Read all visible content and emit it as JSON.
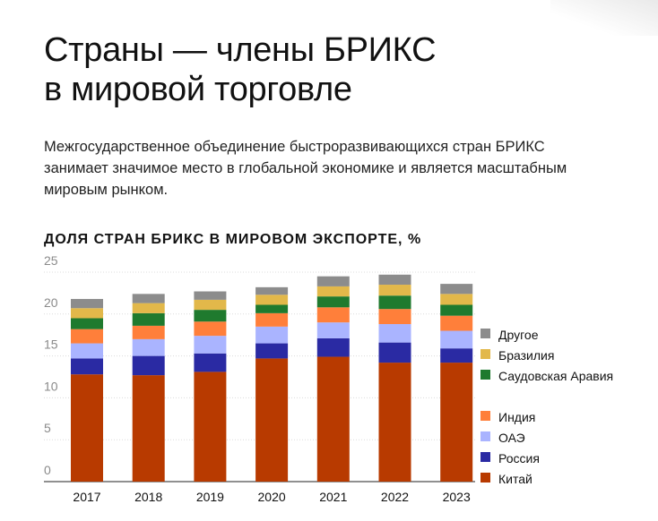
{
  "title_lines": [
    "Страны — члены БРИКС",
    "в мировой торговле"
  ],
  "subtitle_lines": [
    "Межгосударственное объединение быстроразвивающихся стран БРИКС",
    "занимает значимое место в глобальной экономике и является масштабным",
    "мировым рынком."
  ],
  "chart_data": {
    "type": "bar",
    "stacked": true,
    "title": "ДОЛЯ СТРАН БРИКС В МИРОВОМ ЭКСПОРТЕ, %",
    "categories": [
      "2017",
      "2018",
      "2019",
      "2020",
      "2021",
      "2022",
      "2023"
    ],
    "ylim": [
      0,
      25
    ],
    "yticks": [
      "0",
      "5",
      "10",
      "15",
      "20",
      "25"
    ],
    "grid": true,
    "legend_position": "right",
    "series": [
      {
        "name": "Китай",
        "color": "#b83a00",
        "values": [
          12.8,
          12.7,
          13.1,
          14.7,
          14.9,
          14.2,
          14.2
        ]
      },
      {
        "name": "Россия",
        "color": "#2a2aa3",
        "values": [
          1.9,
          2.3,
          2.2,
          1.8,
          2.2,
          2.4,
          1.7
        ]
      },
      {
        "name": "ОАЭ",
        "color": "#aab4ff",
        "values": [
          1.8,
          2.0,
          2.1,
          2.0,
          1.9,
          2.2,
          2.1
        ]
      },
      {
        "name": "Индия",
        "color": "#ff7f3a",
        "values": [
          1.7,
          1.6,
          1.7,
          1.6,
          1.8,
          1.8,
          1.8
        ]
      },
      {
        "name": "Саудовская Аравия",
        "color": "#1f7a2e",
        "values": [
          1.3,
          1.5,
          1.4,
          1.0,
          1.3,
          1.6,
          1.3
        ]
      },
      {
        "name": "Бразилия",
        "color": "#e2b84a",
        "values": [
          1.2,
          1.2,
          1.2,
          1.2,
          1.2,
          1.3,
          1.3
        ]
      },
      {
        "name": "Другое",
        "color": "#8c8c8c",
        "values": [
          1.1,
          1.1,
          1.0,
          0.9,
          1.2,
          1.2,
          1.2
        ]
      }
    ]
  }
}
